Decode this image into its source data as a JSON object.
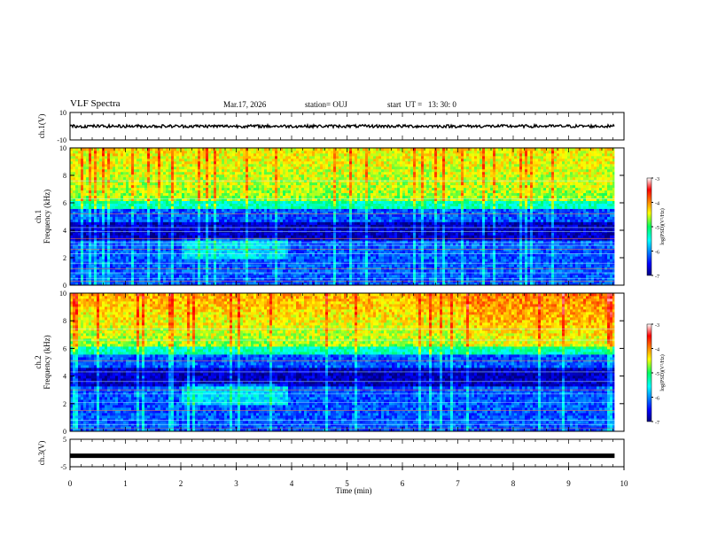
{
  "header": {
    "title": "VLF Spectra",
    "date": "Mar.17, 2026",
    "station": "station= OUJ",
    "start": "start  UT =   13: 30: 0"
  },
  "chart_data": {
    "type": "heatmap",
    "xlabel": "Time (min)",
    "xlim": [
      0,
      10
    ],
    "x_ticks": [
      "0",
      "1",
      "2",
      "3",
      "4",
      "5",
      "6",
      "7",
      "8",
      "9",
      "10"
    ],
    "panels": [
      {
        "id": "ch1-waveform",
        "ylabel": "ch.1(V)",
        "ylim": [
          -10,
          10
        ],
        "y_ticks": [
          "10",
          "-10"
        ],
        "data_end_min": 9.83
      },
      {
        "id": "ch1-spectrogram",
        "ylabel_top": "ch.1",
        "ylabel": "Frequency (kHz)",
        "ylim": [
          0,
          10
        ],
        "y_ticks": [
          "0",
          "2",
          "4",
          "6",
          "8",
          "10"
        ]
      },
      {
        "id": "ch2-spectrogram",
        "ylabel_top": "ch.2",
        "ylabel": "Frequency (kHz)",
        "ylim": [
          0,
          10
        ],
        "y_ticks": [
          "0",
          "2",
          "4",
          "6",
          "8",
          "10"
        ]
      },
      {
        "id": "ch3-waveform",
        "ylabel": "ch.3(V)",
        "ylim": [
          -5,
          5
        ],
        "y_ticks": [
          "5",
          "-5"
        ],
        "level": -1,
        "data_end_min": 9.83
      }
    ],
    "colorbar": {
      "label": "log(PSD)(V²/Hz)",
      "range": [
        -7,
        -3
      ],
      "ticks": [
        "-3",
        "-4",
        "-5",
        "-6",
        "-7"
      ]
    }
  }
}
